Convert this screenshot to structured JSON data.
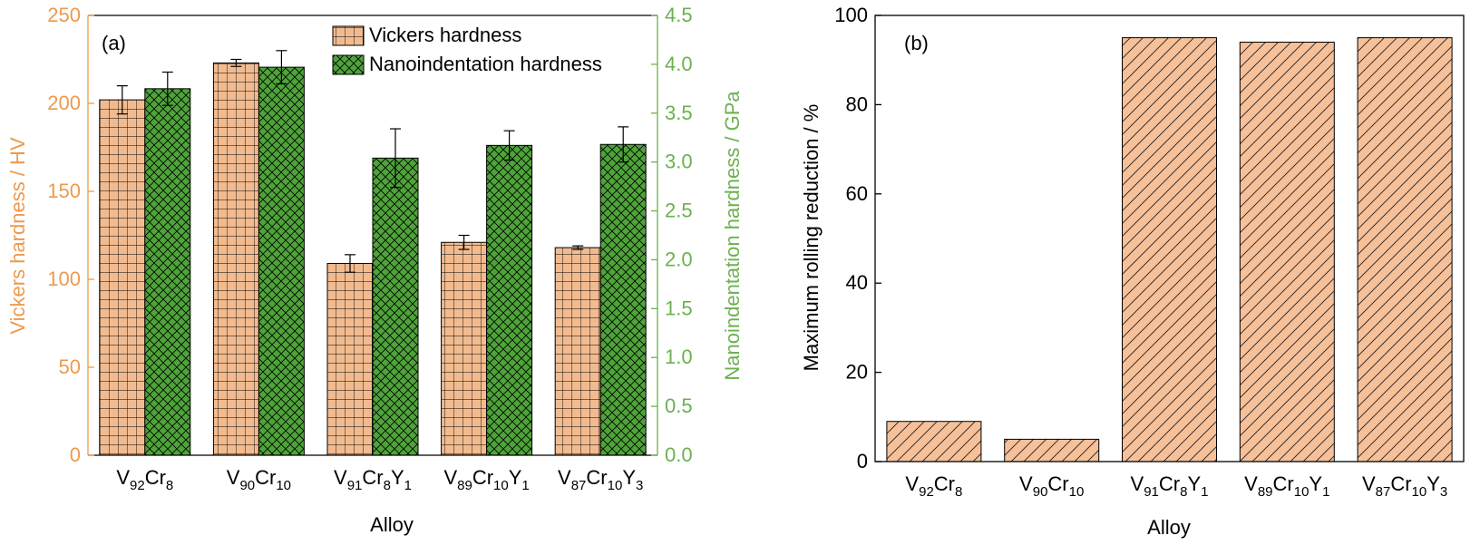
{
  "colors": {
    "vickers": "#f2bb8f",
    "vickers_axis": "#ee9a4e",
    "nano": "#4ea43a",
    "nano_axis": "#6cb14f",
    "rolling": "#f6c099",
    "frame": "#000000"
  },
  "chart_data": [
    {
      "type": "bar",
      "panel_label": "(a)",
      "categories": [
        {
          "base": "V",
          "sub1": "92",
          "mid": "Cr",
          "sub2": "8",
          "end": "",
          "sub3": ""
        },
        {
          "base": "V",
          "sub1": "90",
          "mid": "Cr",
          "sub2": "10",
          "end": "",
          "sub3": ""
        },
        {
          "base": "V",
          "sub1": "91",
          "mid": "Cr",
          "sub2": "8",
          "end": "Y",
          "sub3": "1"
        },
        {
          "base": "V",
          "sub1": "89",
          "mid": "Cr",
          "sub2": "10",
          "end": "Y",
          "sub3": "1"
        },
        {
          "base": "V",
          "sub1": "87",
          "mid": "Cr",
          "sub2": "10",
          "end": "Y",
          "sub3": "3"
        }
      ],
      "xlabel": "Alloy",
      "series": [
        {
          "name": "Vickers hardness",
          "axis": "left",
          "values": [
            202,
            223,
            109,
            121,
            118
          ],
          "errors": [
            8,
            2,
            5,
            4,
            1
          ],
          "pattern": "grid"
        },
        {
          "name": "Nanoindentation hardness",
          "axis": "right",
          "values": [
            3.75,
            3.97,
            3.04,
            3.17,
            3.18
          ],
          "errors": [
            0.17,
            0.17,
            0.3,
            0.15,
            0.18
          ],
          "pattern": "crosshatch"
        }
      ],
      "y_left": {
        "label": "Vickers hardness / HV",
        "ylim": [
          0,
          250
        ],
        "ticks": [
          "0",
          "50",
          "100",
          "150",
          "200",
          "250"
        ]
      },
      "y_right": {
        "label": "Nanoindentation hardness / GPa",
        "ylim": [
          0,
          4.5
        ],
        "ticks": [
          "0.0",
          "0.5",
          "1.0",
          "1.5",
          "2.0",
          "2.5",
          "3.0",
          "3.5",
          "4.0",
          "4.5"
        ]
      },
      "legend_position": "top-center",
      "grid": false
    },
    {
      "type": "bar",
      "panel_label": "(b)",
      "categories": [
        {
          "base": "V",
          "sub1": "92",
          "mid": "Cr",
          "sub2": "8",
          "end": "",
          "sub3": ""
        },
        {
          "base": "V",
          "sub1": "90",
          "mid": "Cr",
          "sub2": "10",
          "end": "",
          "sub3": ""
        },
        {
          "base": "V",
          "sub1": "91",
          "mid": "Cr",
          "sub2": "8",
          "end": "Y",
          "sub3": "1"
        },
        {
          "base": "V",
          "sub1": "89",
          "mid": "Cr",
          "sub2": "10",
          "end": "Y",
          "sub3": "1"
        },
        {
          "base": "V",
          "sub1": "87",
          "mid": "Cr",
          "sub2": "10",
          "end": "Y",
          "sub3": "3"
        }
      ],
      "values": [
        9,
        5,
        95,
        94,
        95
      ],
      "pattern": "diagonal",
      "xlabel": "Alloy",
      "ylabel": "Maximum rolling reduction / %",
      "ylim": [
        0,
        100
      ],
      "ticks": [
        "0",
        "20",
        "40",
        "60",
        "80",
        "100"
      ],
      "grid": false
    }
  ]
}
